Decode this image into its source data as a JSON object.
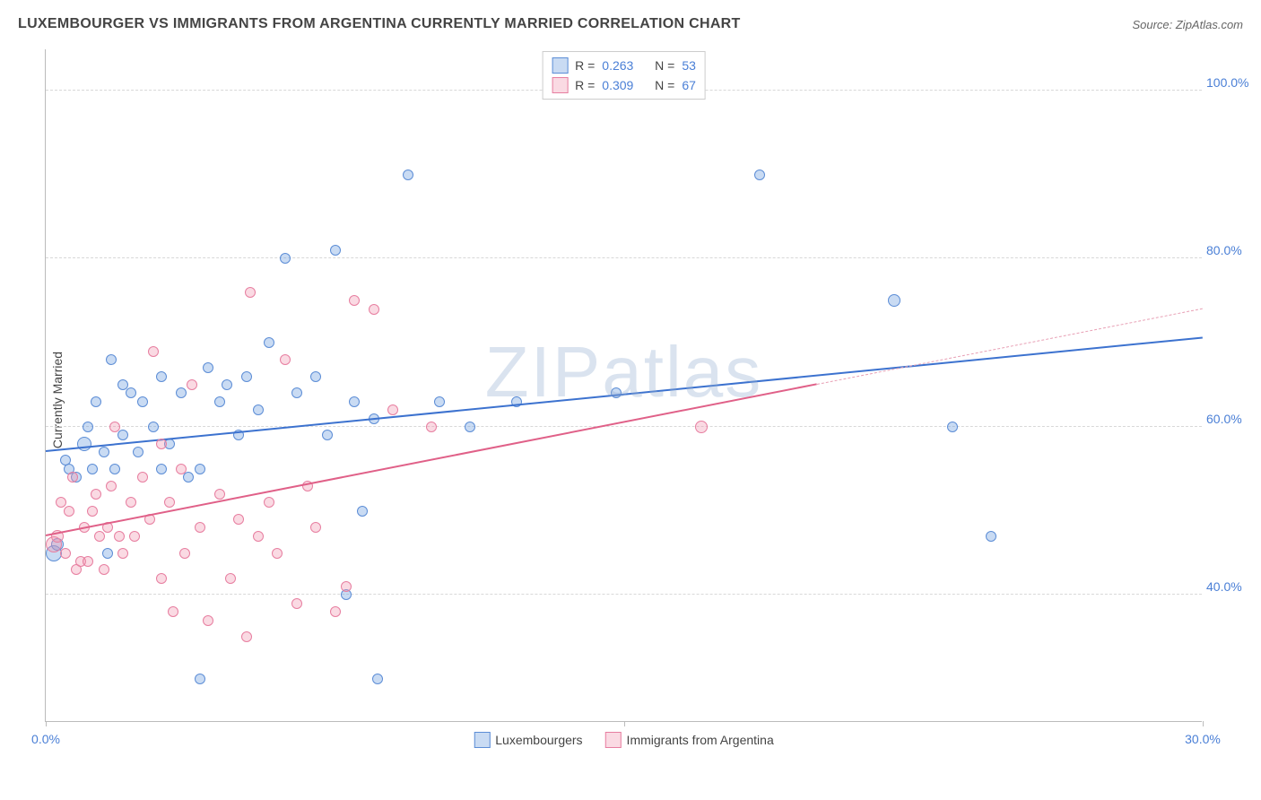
{
  "title": "LUXEMBOURGER VS IMMIGRANTS FROM ARGENTINA CURRENTLY MARRIED CORRELATION CHART",
  "source": "Source: ZipAtlas.com",
  "watermark": "ZIPatlas",
  "chart": {
    "type": "scatter",
    "ylabel": "Currently Married",
    "background_color": "#ffffff",
    "grid_color": "#d8d8d8",
    "axis_color": "#bbbbbb",
    "label_color": "#4a7fd6",
    "text_color": "#444444",
    "xlim": [
      0,
      30
    ],
    "ylim": [
      25,
      105
    ],
    "xticks": [
      {
        "pos": 0,
        "label": "0.0%"
      },
      {
        "pos": 15,
        "label": ""
      },
      {
        "pos": 30,
        "label": "30.0%"
      }
    ],
    "yticks": [
      {
        "pos": 40,
        "label": "40.0%"
      },
      {
        "pos": 60,
        "label": "60.0%"
      },
      {
        "pos": 80,
        "label": "80.0%"
      },
      {
        "pos": 100,
        "label": "100.0%"
      }
    ],
    "series": [
      {
        "name": "Luxembourgers",
        "marker_fill": "rgba(120, 165, 225, 0.4)",
        "marker_stroke": "#5c8dd6",
        "R": "0.263",
        "N": "53",
        "trend": {
          "x1": 0,
          "y1": 57,
          "x2": 30,
          "y2": 70.5,
          "color": "#3c72cf"
        },
        "points": [
          {
            "x": 0.2,
            "y": 45,
            "r": 9
          },
          {
            "x": 0.3,
            "y": 46,
            "r": 7
          },
          {
            "x": 0.5,
            "y": 56,
            "r": 6
          },
          {
            "x": 0.6,
            "y": 55,
            "r": 6
          },
          {
            "x": 0.8,
            "y": 54,
            "r": 6
          },
          {
            "x": 1.0,
            "y": 58,
            "r": 8
          },
          {
            "x": 1.1,
            "y": 60,
            "r": 6
          },
          {
            "x": 1.2,
            "y": 55,
            "r": 6
          },
          {
            "x": 1.3,
            "y": 63,
            "r": 6
          },
          {
            "x": 1.5,
            "y": 57,
            "r": 6
          },
          {
            "x": 1.6,
            "y": 45,
            "r": 6
          },
          {
            "x": 1.7,
            "y": 68,
            "r": 6
          },
          {
            "x": 1.8,
            "y": 55,
            "r": 6
          },
          {
            "x": 2.0,
            "y": 59,
            "r": 6
          },
          {
            "x": 2.0,
            "y": 65,
            "r": 6
          },
          {
            "x": 2.2,
            "y": 64,
            "r": 6
          },
          {
            "x": 2.4,
            "y": 57,
            "r": 6
          },
          {
            "x": 2.5,
            "y": 63,
            "r": 6
          },
          {
            "x": 2.8,
            "y": 60,
            "r": 6
          },
          {
            "x": 3.0,
            "y": 55,
            "r": 6
          },
          {
            "x": 3.0,
            "y": 66,
            "r": 6
          },
          {
            "x": 3.2,
            "y": 58,
            "r": 6
          },
          {
            "x": 3.5,
            "y": 64,
            "r": 6
          },
          {
            "x": 3.7,
            "y": 54,
            "r": 6
          },
          {
            "x": 4.0,
            "y": 55,
            "r": 6
          },
          {
            "x": 4.0,
            "y": 30,
            "r": 6
          },
          {
            "x": 4.2,
            "y": 67,
            "r": 6
          },
          {
            "x": 4.5,
            "y": 63,
            "r": 6
          },
          {
            "x": 4.7,
            "y": 65,
            "r": 6
          },
          {
            "x": 5.0,
            "y": 59,
            "r": 6
          },
          {
            "x": 5.2,
            "y": 66,
            "r": 6
          },
          {
            "x": 5.5,
            "y": 62,
            "r": 6
          },
          {
            "x": 5.8,
            "y": 70,
            "r": 6
          },
          {
            "x": 6.2,
            "y": 80,
            "r": 6
          },
          {
            "x": 6.5,
            "y": 64,
            "r": 6
          },
          {
            "x": 7.0,
            "y": 66,
            "r": 6
          },
          {
            "x": 7.3,
            "y": 59,
            "r": 6
          },
          {
            "x": 7.5,
            "y": 81,
            "r": 6
          },
          {
            "x": 7.8,
            "y": 40,
            "r": 6
          },
          {
            "x": 8.0,
            "y": 63,
            "r": 6
          },
          {
            "x": 8.2,
            "y": 50,
            "r": 6
          },
          {
            "x": 8.5,
            "y": 61,
            "r": 6
          },
          {
            "x": 8.6,
            "y": 30,
            "r": 6
          },
          {
            "x": 9.4,
            "y": 90,
            "r": 6
          },
          {
            "x": 10.2,
            "y": 63,
            "r": 6
          },
          {
            "x": 11.0,
            "y": 60,
            "r": 6
          },
          {
            "x": 12.2,
            "y": 63,
            "r": 6
          },
          {
            "x": 14.8,
            "y": 64,
            "r": 6
          },
          {
            "x": 18.5,
            "y": 90,
            "r": 6
          },
          {
            "x": 22.0,
            "y": 75,
            "r": 7
          },
          {
            "x": 23.5,
            "y": 60,
            "r": 6
          },
          {
            "x": 24.5,
            "y": 47,
            "r": 6
          }
        ]
      },
      {
        "name": "Immigrants from Argentina",
        "marker_fill": "rgba(240, 150, 175, 0.35)",
        "marker_stroke": "#e77ea0",
        "R": "0.309",
        "N": "67",
        "trend": {
          "x1": 0,
          "y1": 47,
          "x2": 20,
          "y2": 65,
          "color": "#e06088"
        },
        "trend_ext": {
          "x1": 20,
          "y1": 65,
          "x2": 30,
          "y2": 74,
          "color": "#e8a0b5"
        },
        "points": [
          {
            "x": 0.2,
            "y": 46,
            "r": 9
          },
          {
            "x": 0.3,
            "y": 47,
            "r": 7
          },
          {
            "x": 0.4,
            "y": 51,
            "r": 6
          },
          {
            "x": 0.5,
            "y": 45,
            "r": 6
          },
          {
            "x": 0.6,
            "y": 50,
            "r": 6
          },
          {
            "x": 0.7,
            "y": 54,
            "r": 6
          },
          {
            "x": 0.8,
            "y": 43,
            "r": 6
          },
          {
            "x": 0.9,
            "y": 44,
            "r": 6
          },
          {
            "x": 1.0,
            "y": 48,
            "r": 6
          },
          {
            "x": 1.1,
            "y": 44,
            "r": 6
          },
          {
            "x": 1.2,
            "y": 50,
            "r": 6
          },
          {
            "x": 1.3,
            "y": 52,
            "r": 6
          },
          {
            "x": 1.4,
            "y": 47,
            "r": 6
          },
          {
            "x": 1.5,
            "y": 43,
            "r": 6
          },
          {
            "x": 1.6,
            "y": 48,
            "r": 6
          },
          {
            "x": 1.7,
            "y": 53,
            "r": 6
          },
          {
            "x": 1.8,
            "y": 60,
            "r": 6
          },
          {
            "x": 1.9,
            "y": 47,
            "r": 6
          },
          {
            "x": 2.0,
            "y": 45,
            "r": 6
          },
          {
            "x": 2.2,
            "y": 51,
            "r": 6
          },
          {
            "x": 2.3,
            "y": 47,
            "r": 6
          },
          {
            "x": 2.5,
            "y": 54,
            "r": 6
          },
          {
            "x": 2.7,
            "y": 49,
            "r": 6
          },
          {
            "x": 2.8,
            "y": 69,
            "r": 6
          },
          {
            "x": 3.0,
            "y": 42,
            "r": 6
          },
          {
            "x": 3.0,
            "y": 58,
            "r": 6
          },
          {
            "x": 3.2,
            "y": 51,
            "r": 6
          },
          {
            "x": 3.3,
            "y": 38,
            "r": 6
          },
          {
            "x": 3.5,
            "y": 55,
            "r": 6
          },
          {
            "x": 3.6,
            "y": 45,
            "r": 6
          },
          {
            "x": 3.8,
            "y": 65,
            "r": 6
          },
          {
            "x": 4.0,
            "y": 48,
            "r": 6
          },
          {
            "x": 4.2,
            "y": 37,
            "r": 6
          },
          {
            "x": 4.5,
            "y": 52,
            "r": 6
          },
          {
            "x": 4.8,
            "y": 42,
            "r": 6
          },
          {
            "x": 5.0,
            "y": 49,
            "r": 6
          },
          {
            "x": 5.2,
            "y": 35,
            "r": 6
          },
          {
            "x": 5.3,
            "y": 76,
            "r": 6
          },
          {
            "x": 5.5,
            "y": 47,
            "r": 6
          },
          {
            "x": 5.8,
            "y": 51,
            "r": 6
          },
          {
            "x": 6.0,
            "y": 45,
            "r": 6
          },
          {
            "x": 6.2,
            "y": 68,
            "r": 6
          },
          {
            "x": 6.5,
            "y": 39,
            "r": 6
          },
          {
            "x": 6.8,
            "y": 53,
            "r": 6
          },
          {
            "x": 7.0,
            "y": 48,
            "r": 6
          },
          {
            "x": 7.5,
            "y": 38,
            "r": 6
          },
          {
            "x": 7.8,
            "y": 41,
            "r": 6
          },
          {
            "x": 8.0,
            "y": 75,
            "r": 6
          },
          {
            "x": 8.5,
            "y": 74,
            "r": 6
          },
          {
            "x": 9.0,
            "y": 62,
            "r": 6
          },
          {
            "x": 10.0,
            "y": 60,
            "r": 6
          },
          {
            "x": 17.0,
            "y": 60,
            "r": 7
          }
        ]
      }
    ]
  },
  "legend_top": {
    "r_label": "R =",
    "n_label": "N ="
  },
  "legend_bottom": [
    "Luxembourgers",
    "Immigrants from Argentina"
  ]
}
